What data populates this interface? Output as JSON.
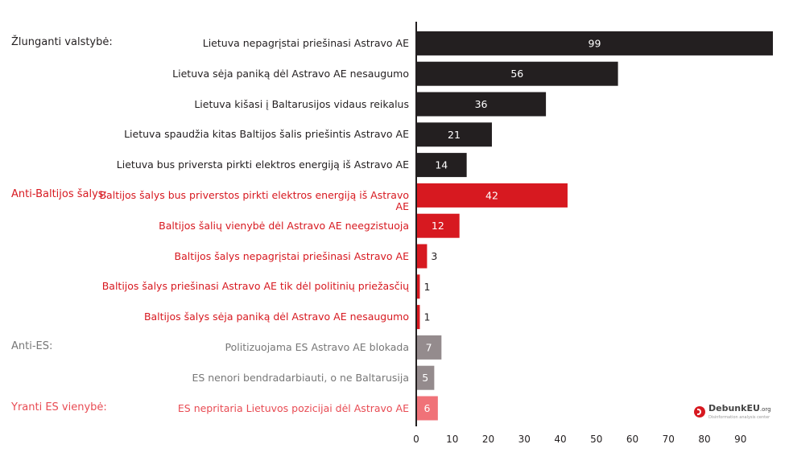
{
  "chart_data": {
    "type": "bar",
    "orientation": "horizontal",
    "groups": [
      {
        "label": "Žlunganti valstybė:",
        "color": "#231f20",
        "label_color": "#231f20",
        "start": 0
      },
      {
        "label": "Anti-Baltijos šalys:",
        "color": "#d71920",
        "label_color": "#d71920",
        "start": 5
      },
      {
        "label": "Anti-ES:",
        "color": "#948b8d",
        "label_color": "#777777",
        "start": 10
      },
      {
        "label": "Yranti ES vienybė:",
        "color": "#f07278",
        "label_color": "#e84b53",
        "start": 12
      }
    ],
    "categories": [
      "Lietuva nepagrįstai priešinasi Astravo AE",
      "Lietuva sėja paniką dėl Astravo AE nesaugumo",
      "Lietuva kišasi į Baltarusijos vidaus reikalus",
      "Lietuva spaudžia kitas Baltijos šalis priešintis Astravo AE",
      "Lietuva bus priversta pirkti elektros energiją iš Astravo AE",
      "Baltijos šalys bus priverstos pirkti elektros energiją iš Astravo AE",
      "Baltijos šalių vienybė dėl Astravo AE neegzistuoja",
      "Baltijos šalys nepagrįstai priešinasi Astravo AE",
      "Baltijos šalys priešinasi Astravo AE tik dėl politinių priežasčių",
      "Baltijos šalys sėja paniką dėl Astravo AE nesaugumo",
      "Politizuojama ES Astravo AE blokada",
      "ES nenori bendradarbiauti, o ne Baltarusija",
      "ES nepritaria Lietuvos pozicijai dėl Astravo AE"
    ],
    "values": [
      99,
      56,
      36,
      21,
      14,
      42,
      12,
      3,
      1,
      1,
      7,
      5,
      6
    ],
    "group_index": [
      0,
      0,
      0,
      0,
      0,
      1,
      1,
      1,
      1,
      1,
      2,
      2,
      3
    ],
    "xlim": [
      0,
      99
    ],
    "xticks": [
      "0",
      "10",
      "20",
      "30",
      "40",
      "50",
      "60",
      "70",
      "80",
      "90"
    ],
    "tick_values": [
      0,
      10,
      20,
      30,
      40,
      50,
      60,
      70,
      80,
      90
    ],
    "grid": false,
    "legend": "none"
  },
  "logo": {
    "text": "DebunkEU",
    "suffix": ".org",
    "subtext": "Disinformation analysis center"
  }
}
